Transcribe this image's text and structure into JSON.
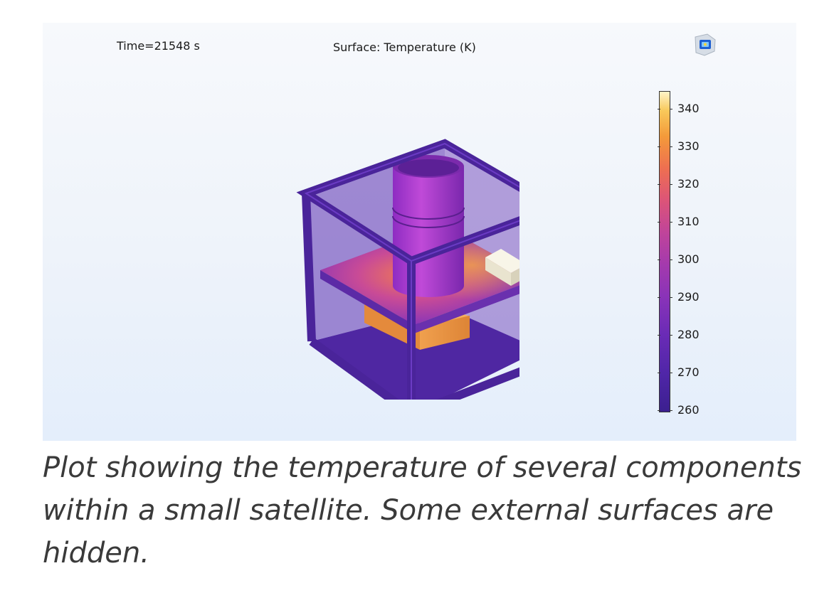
{
  "plot": {
    "time_label": "Time=21548 s",
    "title": "Surface: Temperature (K)",
    "colorbar": {
      "colormap": "plasma-like (dark purple to pale yellow)",
      "ticks": [
        "340",
        "330",
        "320",
        "310",
        "300",
        "290",
        "280",
        "270",
        "260"
      ],
      "min": 260,
      "max": 346
    },
    "icon": "app-logo-icon"
  },
  "caption": "Plot showing the temperature of several components within a small satellite. Some external surfaces are hidden.",
  "colors": {
    "frame": "#4a249a",
    "panel_bg": "#eaf2fc",
    "cylinder": "#a23ad0",
    "component_cold": "#f2eedc",
    "component_hot": "#ec9a48"
  }
}
